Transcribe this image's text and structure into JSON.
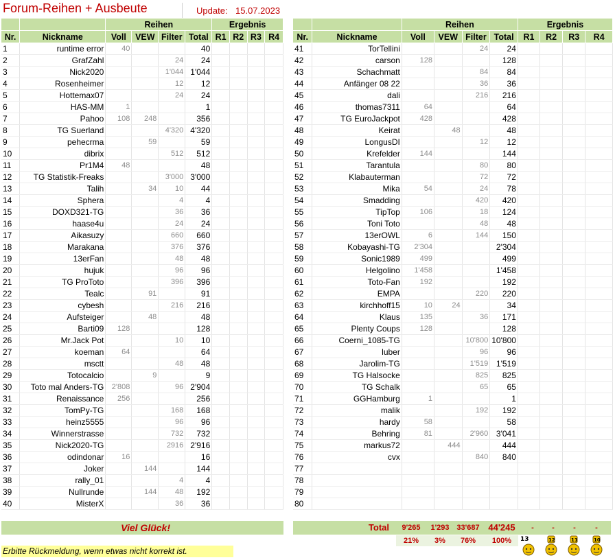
{
  "header": {
    "title": "Forum-Reihen + Ausbeute",
    "update_label": "Update:",
    "update_date": "15.07.2023"
  },
  "columns": {
    "group_reihen": "Reihen",
    "group_ergebnis": "Ergebnis",
    "nr": "Nr.",
    "nickname": "Nickname",
    "voll": "Voll",
    "vew": "VEW",
    "filter": "Filter",
    "total": "Total",
    "r1": "R1",
    "r2": "R2",
    "r3": "R3",
    "r4": "R4"
  },
  "left_rows": [
    {
      "nr": "1",
      "nick": "runtime error",
      "voll": "40",
      "vew": "",
      "filter": "",
      "total": "40"
    },
    {
      "nr": "2",
      "nick": "GrafZahl",
      "voll": "",
      "vew": "",
      "filter": "24",
      "total": "24"
    },
    {
      "nr": "3",
      "nick": "Nick2020",
      "voll": "",
      "vew": "",
      "filter": "1'044",
      "total": "1'044"
    },
    {
      "nr": "4",
      "nick": "Rosenheimer",
      "voll": "",
      "vew": "",
      "filter": "12",
      "total": "12"
    },
    {
      "nr": "5",
      "nick": "Hottemax07",
      "voll": "",
      "vew": "",
      "filter": "24",
      "total": "24"
    },
    {
      "nr": "6",
      "nick": "HAS-MM",
      "voll": "1",
      "vew": "",
      "filter": "",
      "total": "1"
    },
    {
      "nr": "7",
      "nick": "Pahoo",
      "voll": "108",
      "vew": "248",
      "filter": "",
      "total": "356"
    },
    {
      "nr": "8",
      "nick": "TG Suerland",
      "voll": "",
      "vew": "",
      "filter": "4'320",
      "total": "4'320"
    },
    {
      "nr": "9",
      "nick": "pehecrma",
      "voll": "",
      "vew": "59",
      "filter": "",
      "total": "59"
    },
    {
      "nr": "10",
      "nick": "dibrix",
      "voll": "",
      "vew": "",
      "filter": "512",
      "total": "512"
    },
    {
      "nr": "11",
      "nick": "Pr1M4",
      "voll": "48",
      "vew": "",
      "filter": "",
      "total": "48"
    },
    {
      "nr": "12",
      "nick": "TG Statistik-Freaks",
      "voll": "",
      "vew": "",
      "filter": "3'000",
      "total": "3'000"
    },
    {
      "nr": "13",
      "nick": "Talih",
      "voll": "",
      "vew": "34",
      "filter": "10",
      "total": "44"
    },
    {
      "nr": "14",
      "nick": "Sphera",
      "voll": "",
      "vew": "",
      "filter": "4",
      "total": "4"
    },
    {
      "nr": "15",
      "nick": "DOXD321-TG",
      "voll": "",
      "vew": "",
      "filter": "36",
      "total": "36"
    },
    {
      "nr": "16",
      "nick": "haase4u",
      "voll": "",
      "vew": "",
      "filter": "24",
      "total": "24"
    },
    {
      "nr": "17",
      "nick": "Aikasuzy",
      "voll": "",
      "vew": "",
      "filter": "660",
      "total": "660"
    },
    {
      "nr": "18",
      "nick": "Marakana",
      "voll": "",
      "vew": "",
      "filter": "376",
      "total": "376"
    },
    {
      "nr": "19",
      "nick": "13erFan",
      "voll": "",
      "vew": "",
      "filter": "48",
      "total": "48"
    },
    {
      "nr": "20",
      "nick": "hujuk",
      "voll": "",
      "vew": "",
      "filter": "96",
      "total": "96"
    },
    {
      "nr": "21",
      "nick": "TG ProToto",
      "voll": "",
      "vew": "",
      "filter": "396",
      "total": "396"
    },
    {
      "nr": "22",
      "nick": "Tealc",
      "voll": "",
      "vew": "91",
      "filter": "",
      "total": "91"
    },
    {
      "nr": "23",
      "nick": "cybesh",
      "voll": "",
      "vew": "",
      "filter": "216",
      "total": "216"
    },
    {
      "nr": "24",
      "nick": "Aufsteiger",
      "voll": "",
      "vew": "48",
      "filter": "",
      "total": "48"
    },
    {
      "nr": "25",
      "nick": "Barti09",
      "voll": "128",
      "vew": "",
      "filter": "",
      "total": "128"
    },
    {
      "nr": "26",
      "nick": "Mr.Jack Pot",
      "voll": "",
      "vew": "",
      "filter": "10",
      "total": "10"
    },
    {
      "nr": "27",
      "nick": "koeman",
      "voll": "64",
      "vew": "",
      "filter": "",
      "total": "64"
    },
    {
      "nr": "28",
      "nick": "msctt",
      "voll": "",
      "vew": "",
      "filter": "48",
      "total": "48"
    },
    {
      "nr": "29",
      "nick": "Totocalcio",
      "voll": "",
      "vew": "9",
      "filter": "",
      "total": "9"
    },
    {
      "nr": "30",
      "nick": "Toto mal Anders-TG",
      "voll": "2'808",
      "vew": "",
      "filter": "96",
      "total": "2'904"
    },
    {
      "nr": "31",
      "nick": "Renaissance",
      "voll": "256",
      "vew": "",
      "filter": "",
      "total": "256"
    },
    {
      "nr": "32",
      "nick": "TomPy-TG",
      "voll": "",
      "vew": "",
      "filter": "168",
      "total": "168"
    },
    {
      "nr": "33",
      "nick": "heinz5555",
      "voll": "",
      "vew": "",
      "filter": "96",
      "total": "96"
    },
    {
      "nr": "34",
      "nick": "Winnerstrasse",
      "voll": "",
      "vew": "",
      "filter": "732",
      "total": "732"
    },
    {
      "nr": "35",
      "nick": "Nick2020-TG",
      "voll": "",
      "vew": "",
      "filter": "2916",
      "total": "2'916"
    },
    {
      "nr": "36",
      "nick": "odindonar",
      "voll": "16",
      "vew": "",
      "filter": "",
      "total": "16"
    },
    {
      "nr": "37",
      "nick": "Joker",
      "voll": "",
      "vew": "144",
      "filter": "",
      "total": "144"
    },
    {
      "nr": "38",
      "nick": "rally_01",
      "voll": "",
      "vew": "",
      "filter": "4",
      "total": "4"
    },
    {
      "nr": "39",
      "nick": "Nullrunde",
      "voll": "",
      "vew": "144",
      "filter": "48",
      "total": "192"
    },
    {
      "nr": "40",
      "nick": "MisterX",
      "voll": "",
      "vew": "",
      "filter": "36",
      "total": "36"
    }
  ],
  "right_rows": [
    {
      "nr": "41",
      "nick": "TorTellini",
      "voll": "",
      "vew": "",
      "filter": "24",
      "total": "24"
    },
    {
      "nr": "42",
      "nick": "carson",
      "voll": "128",
      "vew": "",
      "filter": "",
      "total": "128"
    },
    {
      "nr": "43",
      "nick": "Schachmatt",
      "voll": "",
      "vew": "",
      "filter": "84",
      "total": "84"
    },
    {
      "nr": "44",
      "nick": "Anfänger 08 22",
      "voll": "",
      "vew": "",
      "filter": "36",
      "total": "36"
    },
    {
      "nr": "45",
      "nick": "dali",
      "voll": "",
      "vew": "",
      "filter": "216",
      "total": "216"
    },
    {
      "nr": "46",
      "nick": "thomas7311",
      "voll": "64",
      "vew": "",
      "filter": "",
      "total": "64"
    },
    {
      "nr": "47",
      "nick": "TG EuroJackpot",
      "voll": "428",
      "vew": "",
      "filter": "",
      "total": "428"
    },
    {
      "nr": "48",
      "nick": "Keirat",
      "voll": "",
      "vew": "48",
      "filter": "",
      "total": "48"
    },
    {
      "nr": "49",
      "nick": "LongusDI",
      "voll": "",
      "vew": "",
      "filter": "12",
      "total": "12"
    },
    {
      "nr": "50",
      "nick": "Krefelder",
      "voll": "144",
      "vew": "",
      "filter": "",
      "total": "144"
    },
    {
      "nr": "51",
      "nick": "Tarantula",
      "voll": "",
      "vew": "",
      "filter": "80",
      "total": "80"
    },
    {
      "nr": "52",
      "nick": "Klabauterman",
      "voll": "",
      "vew": "",
      "filter": "72",
      "total": "72"
    },
    {
      "nr": "53",
      "nick": "Mika",
      "voll": "54",
      "vew": "",
      "filter": "24",
      "total": "78"
    },
    {
      "nr": "54",
      "nick": "Smadding",
      "voll": "",
      "vew": "",
      "filter": "420",
      "total": "420"
    },
    {
      "nr": "55",
      "nick": "TipTop",
      "voll": "106",
      "vew": "",
      "filter": "18",
      "total": "124"
    },
    {
      "nr": "56",
      "nick": "Toni Toto",
      "voll": "",
      "vew": "",
      "filter": "48",
      "total": "48"
    },
    {
      "nr": "57",
      "nick": "13erOWL",
      "voll": "6",
      "vew": "",
      "filter": "144",
      "total": "150"
    },
    {
      "nr": "58",
      "nick": "Kobayashi-TG",
      "voll": "2'304",
      "vew": "",
      "filter": "",
      "total": "2'304"
    },
    {
      "nr": "59",
      "nick": "Sonic1989",
      "voll": "499",
      "vew": "",
      "filter": "",
      "total": "499"
    },
    {
      "nr": "60",
      "nick": "Helgolino",
      "voll": "1'458",
      "vew": "",
      "filter": "",
      "total": "1'458"
    },
    {
      "nr": "61",
      "nick": "Toto-Fan",
      "voll": "192",
      "vew": "",
      "filter": "",
      "total": "192"
    },
    {
      "nr": "62",
      "nick": "EMPA",
      "voll": "",
      "vew": "",
      "filter": "220",
      "total": "220"
    },
    {
      "nr": "63",
      "nick": "kirchhoff15",
      "voll": "10",
      "vew": "24",
      "filter": "",
      "total": "34"
    },
    {
      "nr": "64",
      "nick": "Klaus",
      "voll": "135",
      "vew": "",
      "filter": "36",
      "total": "171"
    },
    {
      "nr": "65",
      "nick": "Plenty Coups",
      "voll": "128",
      "vew": "",
      "filter": "",
      "total": "128"
    },
    {
      "nr": "66",
      "nick": "Coerni_1085-TG",
      "voll": "",
      "vew": "",
      "filter": "10'800",
      "total": "10'800"
    },
    {
      "nr": "67",
      "nick": "luber",
      "voll": "",
      "vew": "",
      "filter": "96",
      "total": "96"
    },
    {
      "nr": "68",
      "nick": "Jarolim-TG",
      "voll": "",
      "vew": "",
      "filter": "1'519",
      "total": "1'519"
    },
    {
      "nr": "69",
      "nick": "TG Halsocke",
      "voll": "",
      "vew": "",
      "filter": "825",
      "total": "825"
    },
    {
      "nr": "70",
      "nick": "TG Schalk",
      "voll": "",
      "vew": "",
      "filter": "65",
      "total": "65"
    },
    {
      "nr": "71",
      "nick": "GGHamburg",
      "voll": "1",
      "vew": "",
      "filter": "",
      "total": "1"
    },
    {
      "nr": "72",
      "nick": "malik",
      "voll": "",
      "vew": "",
      "filter": "192",
      "total": "192"
    },
    {
      "nr": "73",
      "nick": "hardy",
      "voll": "58",
      "vew": "",
      "filter": "",
      "total": "58"
    },
    {
      "nr": "74",
      "nick": "Behring",
      "voll": "81",
      "vew": "",
      "filter": "2'960",
      "total": "3'041"
    },
    {
      "nr": "75",
      "nick": "markus72",
      "voll": "",
      "vew": "444",
      "filter": "",
      "total": "444"
    },
    {
      "nr": "76",
      "nick": "cvx",
      "voll": "",
      "vew": "",
      "filter": "840",
      "total": "840"
    },
    {
      "nr": "77",
      "nick": "",
      "voll": "",
      "vew": "",
      "filter": "",
      "total": ""
    },
    {
      "nr": "78",
      "nick": "",
      "voll": "",
      "vew": "",
      "filter": "",
      "total": ""
    },
    {
      "nr": "79",
      "nick": "",
      "voll": "",
      "vew": "",
      "filter": "",
      "total": ""
    },
    {
      "nr": "80",
      "nick": "",
      "voll": "",
      "vew": "",
      "filter": "",
      "total": ""
    }
  ],
  "footer": {
    "viel_glueck": "Viel Glück!",
    "total_label": "Total",
    "sum_voll": "9'265",
    "sum_vew": "1'293",
    "sum_filter": "33'687",
    "sum_total": "44'245",
    "pct_voll": "21%",
    "pct_vew": "3%",
    "pct_filter": "76%",
    "pct_total": "100%",
    "result_r1": "-",
    "result_r2": "-",
    "result_r3": "-",
    "result_r4": "-",
    "feedback": "Erbitte Rückmeldung, wenn etwas nicht korrekt ist.",
    "trophies": [
      {
        "icon": "trophy-13-icon",
        "label": "13"
      },
      {
        "icon": "trophy-12-icon",
        "label": "12"
      },
      {
        "icon": "trophy-11-icon",
        "label": "11"
      },
      {
        "icon": "trophy-10-icon",
        "label": "10"
      }
    ]
  },
  "colors": {
    "header_green": "#c6dfa4",
    "accent_red": "#c00000",
    "feedback_yellow": "#ffff99"
  }
}
